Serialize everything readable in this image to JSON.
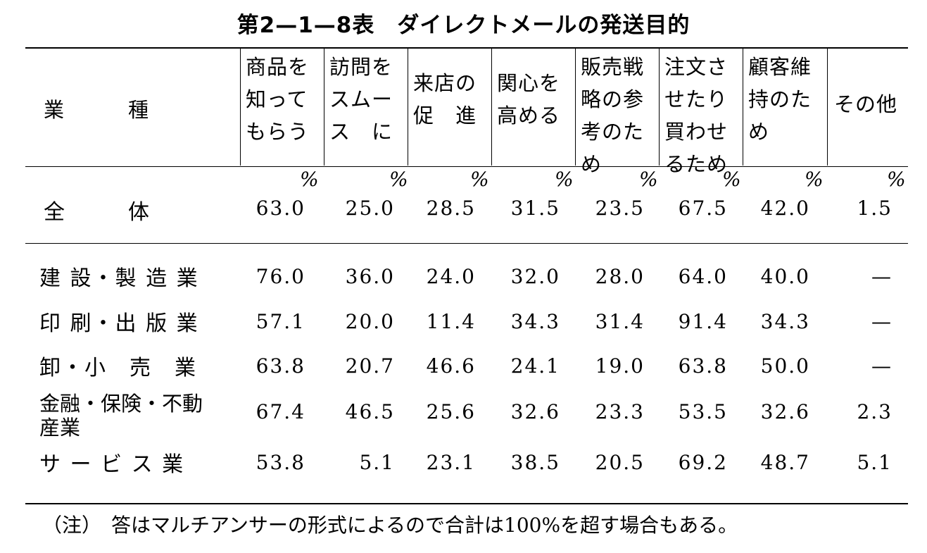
{
  "title": "第2—1—8表　ダイレクトメールの発送目的",
  "table": {
    "corner_header": "業　　　種",
    "columns": [
      "商品を\n知って\nもらう",
      "訪問を\nスムー\nス　に",
      "来店の\n促　進",
      "関心を\n高める",
      "販売戦\n略の参\n考のた\nめ",
      "注文さ\nせたり\n買わせ\nるため",
      "顧客維\n持のた\nめ",
      "その他"
    ],
    "percent_sign": "%",
    "total_row": {
      "label": "全　　　体",
      "values": [
        "63.0",
        "25.0",
        "28.5",
        "31.5",
        "23.5",
        "67.5",
        "42.0",
        "1.5"
      ]
    },
    "rows": [
      {
        "label": "建 設・製 造 業",
        "values": [
          "76.0",
          "36.0",
          "24.0",
          "32.0",
          "28.0",
          "64.0",
          "40.0",
          "—"
        ]
      },
      {
        "label": "印 刷・出 版 業",
        "values": [
          "57.1",
          "20.0",
          "11.4",
          "34.3",
          "31.4",
          "91.4",
          "34.3",
          "—"
        ]
      },
      {
        "label": "卸・小　売　業",
        "values": [
          "63.8",
          "20.7",
          "46.6",
          "24.1",
          "19.0",
          "63.8",
          "50.0",
          "—"
        ]
      },
      {
        "label": "金融・保険・不動\n産業",
        "values": [
          "67.4",
          "46.5",
          "25.6",
          "32.6",
          "23.3",
          "53.5",
          "32.6",
          "2.3"
        ]
      },
      {
        "label": "サ ー ビ ス 業",
        "values": [
          "53.8",
          "5.1",
          "23.1",
          "38.5",
          "20.5",
          "69.2",
          "48.7",
          "5.1"
        ]
      }
    ]
  },
  "note": "（注）　答はマルチアンサーの形式によるので合計は100%を超す場合もある。"
}
